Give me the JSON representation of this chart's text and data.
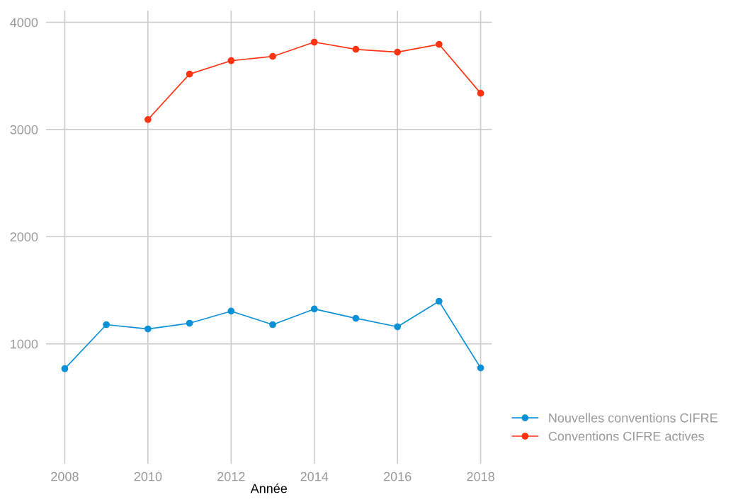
{
  "chart_data": {
    "type": "line",
    "xlabel": "Année",
    "x": [
      2008,
      2009,
      2010,
      2011,
      2012,
      2013,
      2014,
      2015,
      2016,
      2017,
      2018
    ],
    "series": [
      {
        "name": "Nouvelles conventions CIFRE",
        "color": "#0a90d6",
        "values": [
          768,
          1179,
          1139,
          1192,
          1305,
          1179,
          1325,
          1238,
          1159,
          1397,
          775
        ]
      },
      {
        "name": "Conventions CIFRE actives",
        "color": "#ff3311",
        "values": [
          null,
          null,
          3093,
          3517,
          3642,
          3682,
          3815,
          3748,
          3722,
          3795,
          3338
        ]
      }
    ],
    "xlim": [
      2007.55,
      2018.27
    ],
    "xticks": [
      2008,
      2010,
      2012,
      2014,
      2016,
      2018
    ],
    "ylim": [
      -120,
      4110
    ],
    "yticks": [
      1000,
      2000,
      3000,
      4000
    ],
    "grid": true,
    "legend": "right",
    "marker": "circle",
    "line_style": "solid"
  }
}
